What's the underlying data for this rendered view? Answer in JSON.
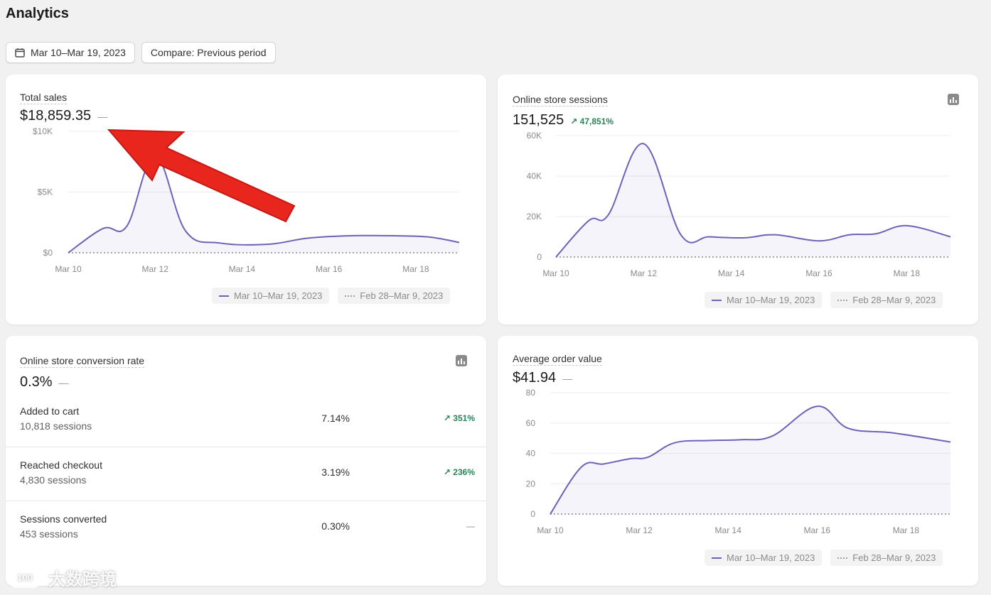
{
  "page": {
    "title": "Analytics"
  },
  "toolbar": {
    "date_range": "Mar 10–Mar 19, 2023",
    "compare": "Compare: Previous period"
  },
  "colors": {
    "series": "#6e62b6",
    "positive": "#29845a",
    "arrow": "#e8261e"
  },
  "total_sales": {
    "title": "Total sales",
    "value": "$18,859.35",
    "change": "—",
    "legend": {
      "current": "Mar 10–Mar 19, 2023",
      "previous": "Feb 28–Mar 9, 2023"
    }
  },
  "sessions": {
    "title": "Online store sessions",
    "value": "151,525",
    "change": "↗ 47,851%",
    "legend": {
      "current": "Mar 10–Mar 19, 2023",
      "previous": "Feb 28–Mar 9, 2023"
    }
  },
  "conversion": {
    "title": "Online store conversion rate",
    "value": "0.3%",
    "change": "—",
    "rows": [
      {
        "label": "Added to cart",
        "sessions": "10,818 sessions",
        "pct": "7.14%",
        "change": "↗ 351%"
      },
      {
        "label": "Reached checkout",
        "sessions": "4,830 sessions",
        "pct": "3.19%",
        "change": "↗ 236%"
      },
      {
        "label": "Sessions converted",
        "sessions": "453 sessions",
        "pct": "0.30%",
        "change": "—"
      }
    ]
  },
  "aov": {
    "title": "Average order value",
    "value": "$41.94",
    "change": "—",
    "legend": {
      "current": "Mar 10–Mar 19, 2023",
      "previous": "Feb 28–Mar 9, 2023"
    }
  },
  "watermark": {
    "logo": "100",
    "text": "大数跨境"
  },
  "chart_data": [
    {
      "type": "line",
      "title": "Total sales",
      "x_ticks": [
        "Mar 10",
        "Mar 12",
        "Mar 14",
        "Mar 16",
        "Mar 18"
      ],
      "y_ticks": [
        "$10K",
        "$5K",
        "$0"
      ],
      "ylim": [
        0,
        10000
      ],
      "series": [
        {
          "name": "Mar 10–Mar 19, 2023",
          "values": [
            0,
            2000,
            2200,
            8000,
            1800,
            800,
            700,
            1200,
            1400,
            1400,
            1300,
            850
          ]
        }
      ],
      "x": [
        0,
        0.8,
        1.35,
        2,
        2.7,
        3.5,
        4.6,
        5.5,
        6.5,
        7.5,
        8.3,
        9
      ]
    },
    {
      "type": "line",
      "title": "Online store sessions",
      "x_ticks": [
        "Mar 10",
        "Mar 12",
        "Mar 14",
        "Mar 16",
        "Mar 18"
      ],
      "y_ticks": [
        "60K",
        "40K",
        "20K",
        "0"
      ],
      "ylim": [
        0,
        60000
      ],
      "series": [
        {
          "name": "Mar 10–Mar 19, 2023",
          "values": [
            0,
            18000,
            21000,
            56000,
            11000,
            10000,
            9500,
            11000,
            8000,
            11000,
            11500,
            15500,
            10000
          ]
        }
      ],
      "x": [
        0,
        0.75,
        1.2,
        2,
        2.85,
        3.5,
        4.3,
        5,
        6,
        6.7,
        7.3,
        8,
        9
      ]
    },
    {
      "type": "line",
      "title": "Average order value",
      "x_ticks": [
        "Mar 10",
        "Mar 12",
        "Mar 14",
        "Mar 16",
        "Mar 18"
      ],
      "y_ticks": [
        "80",
        "60",
        "40",
        "20",
        "0"
      ],
      "ylim": [
        0,
        80
      ],
      "series": [
        {
          "name": "Mar 10–Mar 19, 2023",
          "values": [
            0,
            31,
            33,
            36.5,
            37.5,
            47,
            48.5,
            49,
            51.5,
            71,
            56.5,
            53.5,
            47.5
          ]
        }
      ],
      "x": [
        0,
        0.7,
        1.2,
        1.8,
        2.2,
        2.8,
        3.6,
        4.3,
        5,
        6,
        6.7,
        7.7,
        9
      ]
    }
  ]
}
